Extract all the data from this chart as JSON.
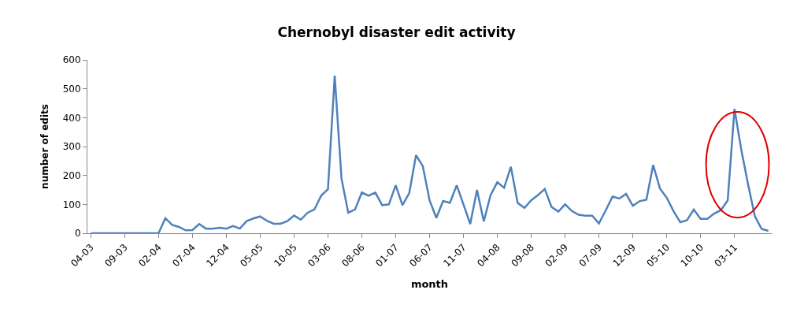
{
  "chart_data": {
    "type": "line",
    "title": "Chernobyl disaster edit activity",
    "xlabel": "month",
    "ylabel": "number of edits",
    "categories": [
      "04-03",
      null,
      null,
      null,
      null,
      "09-03",
      null,
      null,
      null,
      null,
      "02-04",
      null,
      null,
      null,
      null,
      "07-04",
      null,
      null,
      null,
      null,
      "12-04",
      null,
      null,
      null,
      null,
      "05-05",
      null,
      null,
      null,
      null,
      "10-05",
      null,
      null,
      null,
      null,
      "03-06",
      null,
      null,
      null,
      null,
      "08-06",
      null,
      null,
      null,
      null,
      "01-07",
      null,
      null,
      null,
      null,
      "06-07",
      null,
      null,
      null,
      null,
      "11-07",
      null,
      null,
      null,
      null,
      "04-08",
      null,
      null,
      null,
      null,
      "09-08",
      null,
      null,
      null,
      null,
      "02-09",
      null,
      null,
      null,
      null,
      "07-09",
      null,
      null,
      null,
      null,
      "12-09",
      null,
      null,
      null,
      null,
      "05-10",
      null,
      null,
      null,
      null,
      "10-10",
      null,
      null,
      null,
      null,
      "03-11",
      null,
      null,
      null,
      null,
      null
    ],
    "series": [
      {
        "color": "#4f81bd",
        "values": [
          0,
          0,
          0,
          0,
          0,
          0,
          0,
          0,
          0,
          0,
          0,
          52,
          29,
          22,
          10,
          11,
          32,
          16,
          16,
          19,
          16,
          25,
          16,
          42,
          51,
          58,
          43,
          33,
          33,
          42,
          61,
          47,
          71,
          82,
          130,
          152,
          545,
          189,
          71,
          82,
          141,
          130,
          141,
          97,
          100,
          166,
          97,
          139,
          270,
          232,
          114,
          53,
          112,
          105,
          166,
          100,
          32,
          150,
          41,
          132,
          177,
          157,
          230,
          105,
          88,
          114,
          132,
          153,
          91,
          75,
          100,
          77,
          64,
          61,
          61,
          34,
          79,
          127,
          120,
          136,
          95,
          111,
          116,
          236,
          155,
          123,
          77,
          38,
          45,
          82,
          50,
          50,
          68,
          80,
          114,
          430,
          290,
          170,
          60,
          15,
          8
        ]
      }
    ],
    "ylim": [
      0,
      600
    ],
    "yticks": [
      0,
      100,
      200,
      300,
      400,
      500,
      600
    ],
    "marker": "none",
    "line_style": "solid"
  }
}
